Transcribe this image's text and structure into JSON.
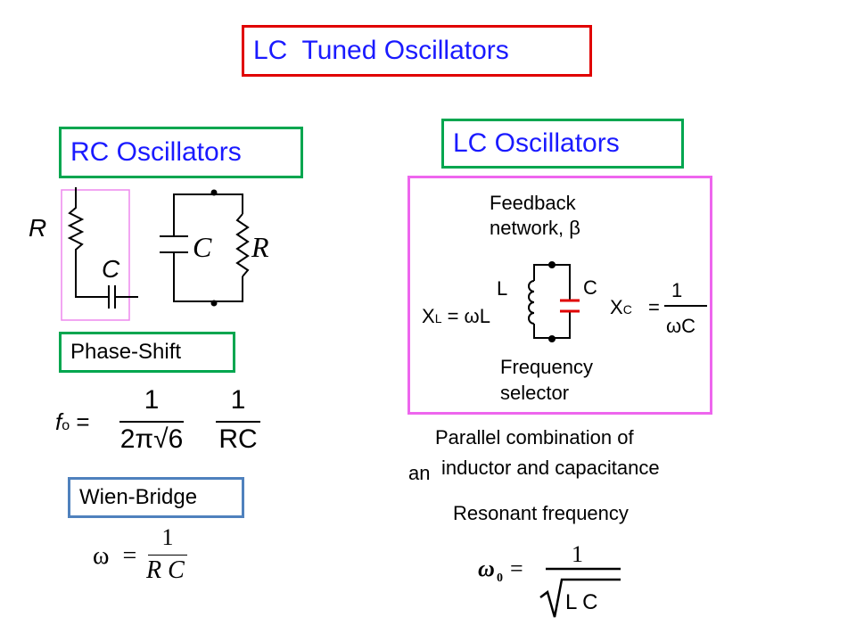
{
  "title": "LC  Tuned Oscillators",
  "rc_section": {
    "heading": "RC Oscillators",
    "circuit1": {
      "r_label": "R",
      "c_label": "C"
    },
    "circuit2": {
      "c_label": "C",
      "r_label": "R"
    },
    "phase_shift": {
      "label": "Phase-Shift",
      "f_label": "f",
      "f_sub": "o",
      "equals": "=",
      "num1": "1",
      "den1": "2π√6",
      "num2": "1",
      "den2": "RC"
    },
    "wien_bridge": {
      "label": "Wien-Bridge",
      "omega": "ω",
      "equals": "=",
      "num": "1",
      "den": "R C"
    }
  },
  "lc_section": {
    "heading": "LC Oscillators",
    "diagram": {
      "feedback_line1": "Feedback",
      "feedback_line2": "network, β",
      "l_label": "L",
      "c_label": "C",
      "xl_x": "X",
      "xl_sub": "L",
      "xl_rest": " = ωL",
      "xc_x": "X",
      "xc_sub": "C",
      "xc_eq": "=",
      "xc_num": "1",
      "xc_den": "ωC",
      "freq_line1": "Frequency",
      "freq_line2": "selector"
    },
    "parallel_line1": "Parallel combination of",
    "parallel_an": "an",
    "parallel_line2": "inductor and capacitance",
    "resonant_label": "Resonant frequency",
    "resonant_formula": {
      "omega": "ω",
      "sub": "0",
      "equals": "=",
      "num": "1",
      "den": "L C"
    }
  },
  "colors": {
    "title_border": "#e00000",
    "heading_text": "#1a1aff",
    "green_border": "#00a64f",
    "blue_border": "#4f81bd",
    "magenta_border": "#ee66ee",
    "capacitor": "#e00000"
  }
}
